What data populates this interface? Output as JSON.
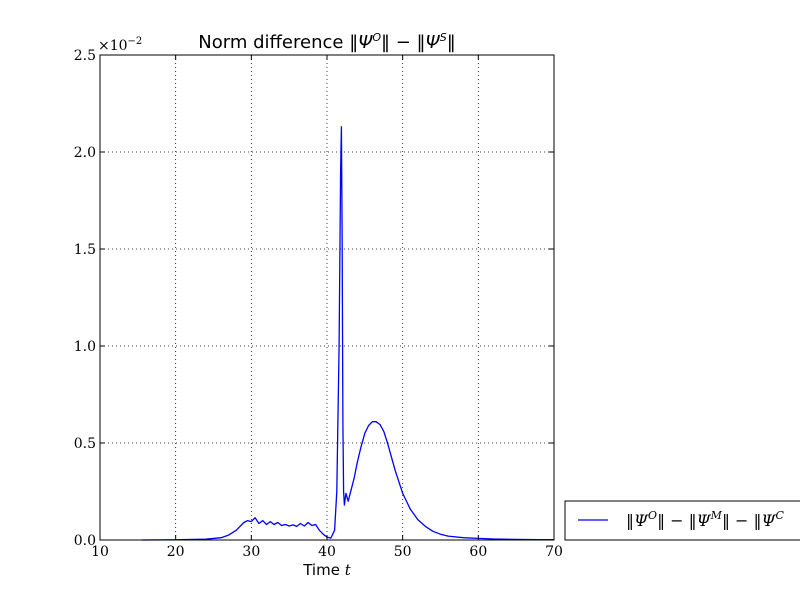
{
  "chart_data": {
    "type": "line",
    "title": "Norm difference ‖Ψ^O‖ − ‖Ψ^S‖",
    "title_parts": {
      "prefix": "Norm difference ",
      "formula": "‖Ψ",
      "sup1": "O",
      "mid": "‖ − ‖Ψ",
      "sup2": "S",
      "suffix": "‖"
    },
    "xlabel": "Time t",
    "xlabel_parts": {
      "prefix": "Time ",
      "var": "t"
    },
    "ylabel": "",
    "y_offset_label": "×10",
    "y_offset_exp": "−2",
    "xlim": [
      10,
      70
    ],
    "ylim": [
      0,
      2.5
    ],
    "x_ticks": [
      "10",
      "20",
      "30",
      "40",
      "50",
      "60",
      "70"
    ],
    "y_ticks": [
      "0.0",
      "0.5",
      "1.0",
      "1.5",
      "2.0",
      "2.5"
    ],
    "grid": true,
    "legend_position": "outside-right-bottom",
    "series": [
      {
        "name": "‖Ψ^O‖ − ‖Ψ^M‖ − ‖Ψ^C",
        "name_parts": {
          "a": "‖Ψ",
          "sa": "O",
          "b": "‖ − ‖Ψ",
          "sb": "M",
          "c": "‖ − ‖Ψ",
          "sc": "C"
        },
        "color": "#0000ff",
        "x": [
          15.5,
          20,
          24,
          26,
          27,
          28,
          28.5,
          29,
          29.5,
          30,
          30.5,
          31,
          31.5,
          32,
          32.5,
          33,
          33.5,
          34,
          34.5,
          35,
          35.5,
          36,
          36.5,
          37,
          37.5,
          38,
          38.5,
          39,
          39.5,
          40,
          40.5,
          41,
          41.3,
          41.6,
          41.8,
          41.9,
          42.0,
          42.1,
          42.2,
          42.3,
          42.5,
          42.8,
          43.2,
          43.6,
          44,
          44.5,
          45,
          45.5,
          46,
          46.5,
          47,
          47.5,
          48,
          48.5,
          49,
          49.5,
          50,
          51,
          52,
          53,
          54,
          55,
          56,
          58,
          60,
          62,
          65,
          68,
          70
        ],
        "y": [
          0.0,
          0.001,
          0.004,
          0.012,
          0.025,
          0.05,
          0.07,
          0.09,
          0.1,
          0.095,
          0.115,
          0.085,
          0.1,
          0.08,
          0.095,
          0.08,
          0.09,
          0.075,
          0.08,
          0.072,
          0.078,
          0.07,
          0.085,
          0.072,
          0.09,
          0.075,
          0.08,
          0.05,
          0.03,
          0.015,
          0.01,
          0.05,
          0.25,
          1.0,
          1.9,
          2.13,
          1.6,
          0.6,
          0.25,
          0.18,
          0.24,
          0.2,
          0.26,
          0.32,
          0.4,
          0.48,
          0.55,
          0.59,
          0.61,
          0.61,
          0.595,
          0.56,
          0.5,
          0.43,
          0.36,
          0.3,
          0.24,
          0.16,
          0.105,
          0.07,
          0.045,
          0.03,
          0.02,
          0.012,
          0.008,
          0.005,
          0.003,
          0.002,
          0.002
        ]
      }
    ]
  }
}
